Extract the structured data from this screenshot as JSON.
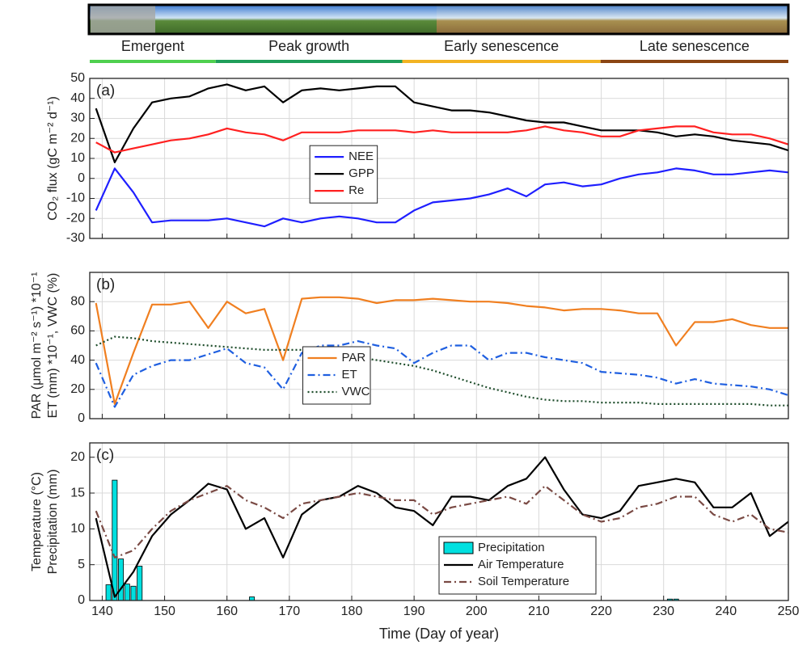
{
  "phases": [
    {
      "label": "Emergent",
      "color": "#4fd04f",
      "start": 138,
      "end": 158.2
    },
    {
      "label": "Peak growth",
      "color": "#1f9e5a",
      "start": 158.2,
      "end": 188.1
    },
    {
      "label": "Early senescence",
      "color": "#f2b322",
      "start": 188.1,
      "end": 219.9
    },
    {
      "label": "Late senescence",
      "color": "#8b4513",
      "start": 219.9,
      "end": 250
    }
  ],
  "chart_data": [
    {
      "type": "line",
      "label": "(a)",
      "ylabel": [
        "CO₂ flux (gC m⁻² d⁻¹)"
      ],
      "xlim": [
        138,
        250
      ],
      "xticks": [
        140,
        150,
        160,
        170,
        180,
        190,
        200,
        210,
        220,
        230,
        240,
        250
      ],
      "ylim": [
        -30,
        50
      ],
      "yticks": [
        -30,
        -20,
        -10,
        0,
        10,
        20,
        30,
        40,
        50
      ],
      "grid": true,
      "legend": "center",
      "x": [
        139,
        142,
        145,
        148,
        151,
        154,
        157,
        160,
        163,
        166,
        169,
        172,
        175,
        178,
        181,
        184,
        187,
        190,
        193,
        196,
        199,
        202,
        205,
        208,
        211,
        214,
        217,
        220,
        223,
        226,
        229,
        232,
        235,
        238,
        241,
        244,
        247,
        250
      ],
      "series": [
        {
          "name": "NEE",
          "color": "#1f1fff",
          "style": "solid",
          "values": [
            -16,
            5,
            -7,
            -22,
            -21,
            -21,
            -21,
            -20,
            -22,
            -24,
            -20,
            -22,
            -20,
            -19,
            -20,
            -22,
            -22,
            -16,
            -12,
            -11,
            -10,
            -8,
            -5,
            -9,
            -3,
            -2,
            -4,
            -3,
            0,
            2,
            3,
            5,
            4,
            2,
            2,
            3,
            4,
            3
          ]
        },
        {
          "name": "GPP",
          "color": "#000000",
          "style": "solid",
          "values": [
            35,
            8,
            25,
            38,
            40,
            41,
            45,
            47,
            44,
            46,
            38,
            44,
            45,
            44,
            45,
            46,
            46,
            38,
            36,
            34,
            34,
            33,
            31,
            29,
            28,
            28,
            26,
            24,
            24,
            24,
            23,
            21,
            22,
            21,
            19,
            18,
            17,
            14
          ]
        },
        {
          "name": "Re",
          "color": "#ff2020",
          "style": "solid",
          "values": [
            18,
            13,
            15,
            17,
            19,
            20,
            22,
            25,
            23,
            22,
            19,
            23,
            23,
            23,
            24,
            24,
            24,
            23,
            24,
            23,
            23,
            23,
            23,
            24,
            26,
            24,
            23,
            21,
            21,
            24,
            25,
            26,
            26,
            23,
            22,
            22,
            20,
            17
          ]
        }
      ]
    },
    {
      "type": "line",
      "label": "(b)",
      "ylabel": [
        "PAR (μmol m⁻² s⁻¹) *10⁻¹",
        "ET (mm) *10⁻¹, VWC (%)"
      ],
      "xlim": [
        138,
        250
      ],
      "xticks": [
        140,
        150,
        160,
        170,
        180,
        190,
        200,
        210,
        220,
        230,
        240,
        250
      ],
      "ylim": [
        0,
        100
      ],
      "yticks": [
        0,
        20,
        40,
        60,
        80
      ],
      "grid": true,
      "legend": "lower center",
      "x": [
        139,
        142,
        145,
        148,
        151,
        154,
        157,
        160,
        163,
        166,
        169,
        172,
        175,
        178,
        181,
        184,
        187,
        190,
        193,
        196,
        199,
        202,
        205,
        208,
        211,
        214,
        217,
        220,
        223,
        226,
        229,
        232,
        235,
        238,
        241,
        244,
        247,
        250
      ],
      "series": [
        {
          "name": "PAR",
          "color": "#f07f20",
          "style": "solid",
          "values": [
            79,
            10,
            45,
            78,
            78,
            80,
            62,
            80,
            72,
            75,
            40,
            82,
            83,
            83,
            82,
            79,
            81,
            81,
            82,
            81,
            80,
            80,
            79,
            77,
            76,
            74,
            75,
            75,
            74,
            72,
            72,
            50,
            66,
            66,
            68,
            64,
            62,
            62
          ]
        },
        {
          "name": "ET",
          "color": "#1f5fe0",
          "style": "dashdot",
          "values": [
            38,
            8,
            30,
            36,
            40,
            40,
            44,
            48,
            38,
            35,
            20,
            45,
            50,
            50,
            53,
            50,
            48,
            38,
            45,
            50,
            50,
            40,
            45,
            45,
            42,
            40,
            38,
            32,
            31,
            30,
            28,
            24,
            27,
            24,
            23,
            22,
            20,
            16
          ]
        },
        {
          "name": "VWC",
          "color": "#1e4d2b",
          "style": "dotted",
          "values": [
            50,
            56,
            55,
            53,
            52,
            51,
            50,
            49,
            48,
            47,
            47,
            47,
            46,
            44,
            42,
            40,
            38,
            36,
            33,
            29,
            25,
            21,
            18,
            15,
            13,
            12,
            12,
            11,
            11,
            11,
            10,
            10,
            10,
            10,
            10,
            10,
            9,
            9
          ]
        }
      ]
    },
    {
      "type": "line",
      "label": "(c)",
      "ylabel": [
        "Temperature (°C)",
        "Precipitation (mm)"
      ],
      "xlabel": "Time (Day of year)",
      "xlim": [
        138,
        250
      ],
      "xticks": [
        140,
        150,
        160,
        170,
        180,
        190,
        200,
        210,
        220,
        230,
        240,
        250
      ],
      "ylim": [
        0,
        22
      ],
      "yticks": [
        0,
        5,
        10,
        15,
        20
      ],
      "grid": true,
      "legend": "lower right",
      "x": [
        139,
        142,
        145,
        148,
        151,
        154,
        157,
        160,
        163,
        166,
        169,
        172,
        175,
        178,
        181,
        184,
        187,
        190,
        193,
        196,
        199,
        202,
        205,
        208,
        211,
        214,
        217,
        220,
        223,
        226,
        229,
        232,
        235,
        238,
        241,
        244,
        247,
        250
      ],
      "series": [
        {
          "name": "Precipitation",
          "type": "bar",
          "color": "#00e0e0",
          "x": [
            141,
            142,
            143,
            144,
            145,
            146,
            164,
            231,
            232
          ],
          "values": [
            2.2,
            16.8,
            5.8,
            2.3,
            2.0,
            4.8,
            0.5,
            0.2,
            0.2
          ]
        },
        {
          "name": "Air Temperature",
          "color": "#000000",
          "style": "solid",
          "values": [
            11.5,
            0.5,
            4,
            9,
            12,
            14,
            16.3,
            15.5,
            10,
            11.5,
            6,
            12,
            14,
            14.5,
            16,
            15,
            13,
            12.5,
            10.5,
            14.5,
            14.5,
            14,
            16,
            17,
            20,
            15.5,
            12,
            11.5,
            12.5,
            16,
            16.5,
            17,
            16.5,
            13,
            13,
            15,
            9,
            11
          ]
        },
        {
          "name": "Soil Temperature",
          "color": "#7a4a44",
          "style": "dashdot",
          "values": [
            12.5,
            6,
            7,
            10,
            12.5,
            14,
            15,
            16,
            14,
            13,
            11.5,
            13.5,
            14,
            14.5,
            15,
            14.5,
            14,
            14,
            12,
            13,
            13.5,
            14,
            14.5,
            13.5,
            16,
            14,
            12,
            11,
            11.5,
            13,
            13.5,
            14.5,
            14.5,
            12,
            11,
            12,
            10,
            9.5
          ]
        }
      ]
    }
  ]
}
